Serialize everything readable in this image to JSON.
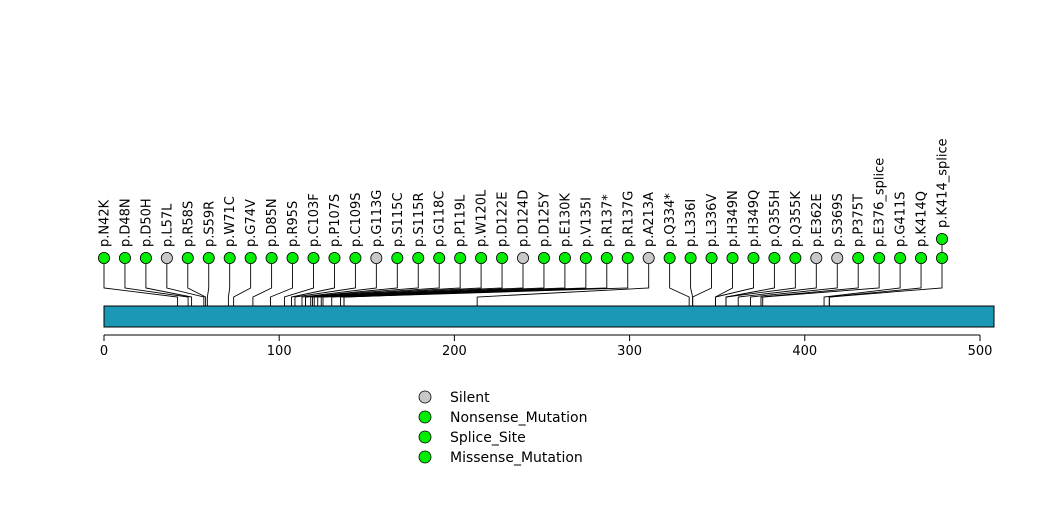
{
  "chart_data": {
    "type": "lollipop",
    "protein_length": 508,
    "x_axis": {
      "range": [
        0,
        508
      ],
      "ticks": [
        0,
        100,
        200,
        300,
        400,
        500
      ]
    },
    "domains": [
      {
        "start": 0,
        "end": 508,
        "color": "#1b98b5"
      }
    ],
    "mutations": [
      {
        "label": "p.N42K",
        "pos": 42,
        "type": "Missense_Mutation",
        "count": 1
      },
      {
        "label": "p.D48N",
        "pos": 48,
        "type": "Missense_Mutation",
        "count": 1
      },
      {
        "label": "p.D50H",
        "pos": 50,
        "type": "Missense_Mutation",
        "count": 1
      },
      {
        "label": "p.L57L",
        "pos": 57,
        "type": "Silent",
        "count": 1
      },
      {
        "label": "p.R58S",
        "pos": 58,
        "type": "Missense_Mutation",
        "count": 1
      },
      {
        "label": "p.S59R",
        "pos": 59,
        "type": "Missense_Mutation",
        "count": 1
      },
      {
        "label": "p.W71C",
        "pos": 71,
        "type": "Missense_Mutation",
        "count": 1
      },
      {
        "label": "p.G74V",
        "pos": 74,
        "type": "Missense_Mutation",
        "count": 1
      },
      {
        "label": "p.D85N",
        "pos": 85,
        "type": "Missense_Mutation",
        "count": 1
      },
      {
        "label": "p.R95S",
        "pos": 95,
        "type": "Missense_Mutation",
        "count": 1
      },
      {
        "label": "p.C103F",
        "pos": 103,
        "type": "Missense_Mutation",
        "count": 1
      },
      {
        "label": "p.P107S",
        "pos": 107,
        "type": "Missense_Mutation",
        "count": 1
      },
      {
        "label": "p.C109S",
        "pos": 109,
        "type": "Missense_Mutation",
        "count": 1
      },
      {
        "label": "p.G113G",
        "pos": 113,
        "type": "Silent",
        "count": 1
      },
      {
        "label": "p.S115C",
        "pos": 115,
        "type": "Missense_Mutation",
        "count": 1
      },
      {
        "label": "p.S115R",
        "pos": 115,
        "type": "Missense_Mutation",
        "count": 1
      },
      {
        "label": "p.G118C",
        "pos": 118,
        "type": "Missense_Mutation",
        "count": 1
      },
      {
        "label": "p.P119L",
        "pos": 119,
        "type": "Missense_Mutation",
        "count": 1
      },
      {
        "label": "p.W120L",
        "pos": 120,
        "type": "Missense_Mutation",
        "count": 1
      },
      {
        "label": "p.D122E",
        "pos": 122,
        "type": "Missense_Mutation",
        "count": 1
      },
      {
        "label": "p.D124D",
        "pos": 124,
        "type": "Silent",
        "count": 1
      },
      {
        "label": "p.D125Y",
        "pos": 125,
        "type": "Missense_Mutation",
        "count": 1
      },
      {
        "label": "p.E130K",
        "pos": 130,
        "type": "Missense_Mutation",
        "count": 1
      },
      {
        "label": "p.V135I",
        "pos": 135,
        "type": "Missense_Mutation",
        "count": 1
      },
      {
        "label": "p.R137*",
        "pos": 137,
        "type": "Nonsense_Mutation",
        "count": 1
      },
      {
        "label": "p.R137G",
        "pos": 137,
        "type": "Missense_Mutation",
        "count": 1
      },
      {
        "label": "p.A213A",
        "pos": 213,
        "type": "Silent",
        "count": 1
      },
      {
        "label": "p.Q334*",
        "pos": 334,
        "type": "Nonsense_Mutation",
        "count": 1
      },
      {
        "label": "p.L336I",
        "pos": 336,
        "type": "Missense_Mutation",
        "count": 1
      },
      {
        "label": "p.L336V",
        "pos": 336,
        "type": "Missense_Mutation",
        "count": 1
      },
      {
        "label": "p.H349N",
        "pos": 349,
        "type": "Missense_Mutation",
        "count": 1
      },
      {
        "label": "p.H349Q",
        "pos": 349,
        "type": "Missense_Mutation",
        "count": 1
      },
      {
        "label": "p.Q355H",
        "pos": 355,
        "type": "Missense_Mutation",
        "count": 1
      },
      {
        "label": "p.Q355K",
        "pos": 355,
        "type": "Missense_Mutation",
        "count": 1
      },
      {
        "label": "p.E362E",
        "pos": 362,
        "type": "Silent",
        "count": 1
      },
      {
        "label": "p.S369S",
        "pos": 369,
        "type": "Silent",
        "count": 1
      },
      {
        "label": "p.P375T",
        "pos": 375,
        "type": "Missense_Mutation",
        "count": 1
      },
      {
        "label": "p.E376_splice",
        "pos": 376,
        "type": "Splice_Site",
        "count": 1
      },
      {
        "label": "p.G411S",
        "pos": 411,
        "type": "Missense_Mutation",
        "count": 1
      },
      {
        "label": "p.K414Q",
        "pos": 414,
        "type": "Missense_Mutation",
        "count": 1
      },
      {
        "label": "p.K414_splice",
        "pos": 414,
        "type": "Splice_Site",
        "count": 2
      }
    ],
    "legend": [
      {
        "label": "Silent",
        "color": "#c8c8c8"
      },
      {
        "label": "Nonsense_Mutation",
        "color": "#00ee00"
      },
      {
        "label": "Splice_Site",
        "color": "#00ee00"
      },
      {
        "label": "Missense_Mutation",
        "color": "#00ee00"
      }
    ],
    "colors": {
      "Silent": "#c8c8c8",
      "Nonsense_Mutation": "#00ee00",
      "Splice_Site": "#00ee00",
      "Missense_Mutation": "#00ee00"
    }
  }
}
